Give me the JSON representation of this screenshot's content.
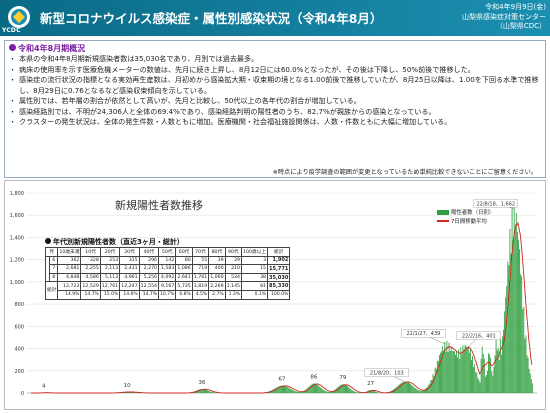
{
  "header": {
    "logo_text": "YCDC",
    "title": "新型コロナウイルス感染症・属性別感染状況（令和4年8月）",
    "date": "令和4年9月9日(金)",
    "org1": "山梨県感染症対策センター",
    "org2": "（山梨県CDC）"
  },
  "summary": {
    "heading": "令和4年8月期概況",
    "bullets": [
      "本県の令和4年8月期新規感染者数は35,030名であり、月別では過去最多。",
      "病床の使用率を示す医療危機メーターの数値は、先月に続き上昇し、8月12日には60.0%となったが、その後は下降し、50%前後で推移した。",
      "感染症の流行状況の指標となる実効再生産数は、月初めから感染拡大期・収束期の境となる1.00前後で推移していたが、8月25日以降は、1.00を下回る水準で推移し、8月29日に0.76となるなど感染収束傾向を示している。",
      "属性別では、若年層の割合が依然として高いが、先月と比較し、50代以上の各年代の割合が増加している。",
      "感染経路別では、不明が24,306人と全体の69.4%であり、感染経路判明の陽性者のうち、82.7%が親族からの感染となっている。",
      "クラスターの発生状況は、全体の発生件数・人数ともに増加。医療機関・社会福祉施設関係は、人数・件数ともに大幅に増加している。"
    ],
    "note": "※時点により疫学調査の範囲が変更となっているため単純比較できないことにご留意ください。"
  },
  "table": {
    "title": "年代別新規陽性者数（直近3ヶ月・総計）",
    "headers": [
      "月",
      "10歳未満",
      "10代",
      "20代",
      "30代",
      "40代",
      "50代",
      "60代",
      "70代",
      "80代",
      "90代",
      "100歳以上",
      "総計"
    ],
    "rows": [
      {
        "label": "6",
        "cells": [
          "362",
          "328",
          "253",
          "315",
          "296",
          "142",
          "80",
          "55",
          "39",
          "29",
          "3",
          "1,902"
        ]
      },
      {
        "label": "7",
        "cells": [
          "2,681",
          "2,255",
          "2,113",
          "2,431",
          "2,270",
          "1,583",
          "1,086",
          "719",
          "400",
          "210",
          "15",
          "15,771"
        ]
      },
      {
        "label": "8",
        "cells": [
          "4,848",
          "4,586",
          "5,113",
          "4,961",
          "5,256",
          "4,092",
          "2,641",
          "1,761",
          "1,060",
          "534",
          "38",
          "35,030"
        ]
      }
    ],
    "total_label": "総計",
    "total": [
      "12,723",
      "12,529",
      "12,761",
      "12,247",
      "12,554",
      "9,167",
      "5,735",
      "3,819",
      "2,269",
      "1,145",
      "81",
      "85,330"
    ],
    "pct": [
      "14.9%",
      "14.7%",
      "15.0%",
      "14.6%",
      "14.7%",
      "10.7%",
      "6.8%",
      "4.5%",
      "2.7%",
      "1.3%",
      "0.1%",
      "100.0%"
    ]
  },
  "chart_data": {
    "type": "bar",
    "title": "新規陽性者数推移",
    "ylim": [
      0,
      1800
    ],
    "yticks": [
      "0",
      "200",
      "400",
      "600",
      "800",
      "1,000",
      "1,200",
      "1,400",
      "1,600",
      "1,800"
    ],
    "series": [
      {
        "name": "陽性者数（日別）",
        "type": "bar",
        "color": "#2e9e3e"
      },
      {
        "name": "7日間移動平均",
        "type": "line",
        "color": "#d0281c"
      }
    ],
    "peaks": [
      {
        "value": 4,
        "label": "4"
      },
      {
        "value": 10,
        "label": "10"
      },
      {
        "value": 36,
        "label": "36"
      },
      {
        "value": 67,
        "label": "67"
      },
      {
        "value": 86,
        "label": "86"
      },
      {
        "value": 79,
        "label": "79"
      },
      {
        "value": 27,
        "label": "27"
      }
    ],
    "annotations": [
      {
        "label": "21/8/20、103",
        "value": 103
      },
      {
        "label": "22/1/27、439",
        "value": 439
      },
      {
        "label": "22/2/16、401",
        "value": 401
      },
      {
        "label": "22/8/18、1,662",
        "value": 1662
      }
    ]
  }
}
